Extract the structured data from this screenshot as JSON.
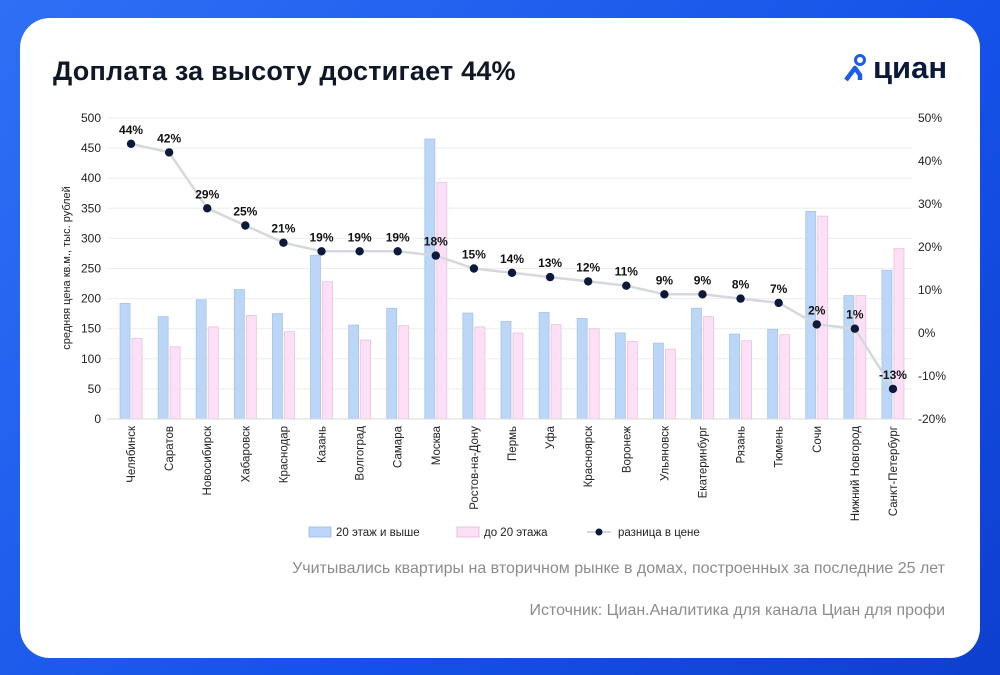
{
  "title": "Доплата за высоту достигает 44%",
  "logo": {
    "text": "циан",
    "icon": "pin-person-icon",
    "color": "#1a5cf0"
  },
  "footnote": "Учитывались квартиры на вторичном рынке в домах, построенных за последние 25 лет",
  "source": "Источник: Циан.Аналитика для канала Циан для профи",
  "chart_data": {
    "type": "bar+line",
    "ylabel": "средняя цена кв.м., тыс. рублей",
    "ylim": [
      0,
      500
    ],
    "yticks": [
      "0",
      "50",
      "100",
      "150",
      "200",
      "250",
      "300",
      "350",
      "400",
      "450",
      "500"
    ],
    "y2lim": [
      -20,
      50
    ],
    "y2ticks": [
      "-20%",
      "-10%",
      "0%",
      "10%",
      "20%",
      "30%",
      "40%",
      "50%"
    ],
    "grid": true,
    "legend_placement": "bottom",
    "categories": [
      "Челябинск",
      "Саратов",
      "Новосибирск",
      "Хабаровск",
      "Краснодар",
      "Казань",
      "Волгоград",
      "Самара",
      "Москва",
      "Ростов-на-Дону",
      "Пермь",
      "Уфа",
      "Красноярск",
      "Воронеж",
      "Ульяновск",
      "Екатеринбург",
      "Рязань",
      "Тюмень",
      "Сочи",
      "Нижний Новгород",
      "Санкт-Петербург"
    ],
    "series": [
      {
        "name": "20 этаж и выше",
        "type": "bar",
        "color": "#bcd6f7",
        "values": [
          192,
          170,
          198,
          215,
          175,
          272,
          156,
          184,
          465,
          176,
          162,
          177,
          167,
          143,
          126,
          184,
          141,
          149,
          345,
          205,
          247
        ]
      },
      {
        "name": "до 20 этажа",
        "type": "bar",
        "color": "#fde0f6",
        "values": [
          134,
          120,
          153,
          172,
          145,
          228,
          131,
          155,
          393,
          153,
          143,
          157,
          150,
          129,
          116,
          170,
          130,
          140,
          337,
          205,
          283
        ]
      },
      {
        "name": "разница в цене",
        "type": "line",
        "axis": "right",
        "color": "#0b1a3a",
        "values": [
          44,
          42,
          29,
          25,
          21,
          19,
          19,
          19,
          18,
          15,
          14,
          13,
          12,
          11,
          9,
          9,
          8,
          7,
          2,
          1,
          -13
        ],
        "labels": [
          "44%",
          "42%",
          "29%",
          "25%",
          "21%",
          "19%",
          "19%",
          "19%",
          "18%",
          "15%",
          "14%",
          "13%",
          "12%",
          "11%",
          "9%",
          "9%",
          "8%",
          "7%",
          "2%",
          "1%",
          "-13%"
        ]
      }
    ]
  }
}
